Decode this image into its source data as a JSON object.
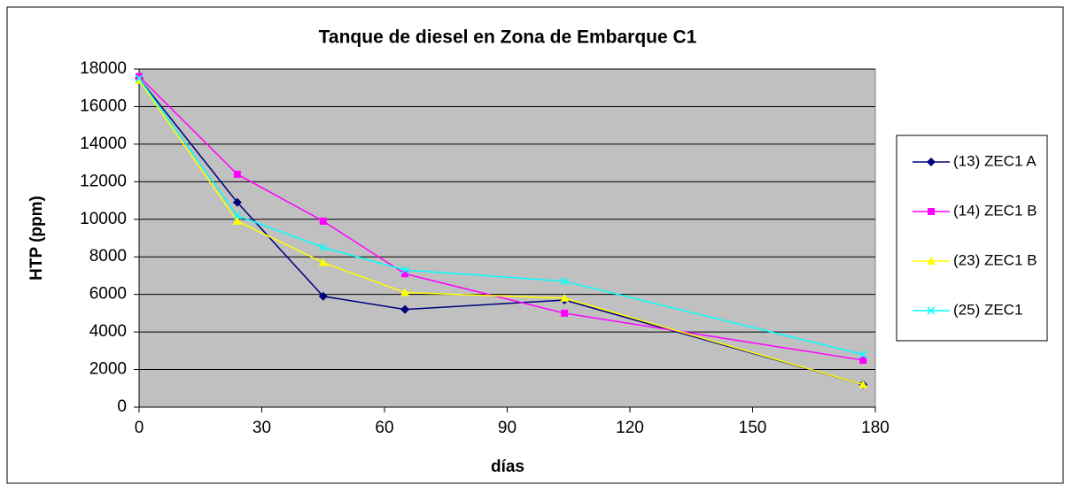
{
  "chart_data": {
    "type": "line",
    "title": "Tanque de diesel en Zona de Embarque C1",
    "x_label": "días",
    "y_label": "HTP (ppm)",
    "x": [
      0,
      24,
      45,
      65,
      104,
      177
    ],
    "series": [
      {
        "name": "(13) ZEC1 A",
        "color": "#000080",
        "marker": "diamond",
        "values": [
          17500,
          10900,
          5900,
          5200,
          5700,
          1200
        ]
      },
      {
        "name": "(14) ZEC1 B",
        "color": "#ff00ff",
        "marker": "square",
        "values": [
          17600,
          12400,
          9900,
          7100,
          5000,
          2500
        ]
      },
      {
        "name": "(23) ZEC1 B",
        "color": "#ffff00",
        "marker": "triangle",
        "values": [
          17400,
          9900,
          7700,
          6100,
          5800,
          1200
        ]
      },
      {
        "name": "(25) ZEC1",
        "color": "#00ffff",
        "marker": "x",
        "values": [
          17500,
          10200,
          8500,
          7300,
          6700,
          2800
        ]
      }
    ],
    "xlim": [
      0,
      180
    ],
    "xticks": [
      0,
      30,
      60,
      90,
      120,
      150,
      180
    ],
    "ylim": [
      0,
      18000
    ],
    "yticks": [
      0,
      2000,
      4000,
      6000,
      8000,
      10000,
      12000,
      14000,
      16000,
      18000
    ],
    "grid": true,
    "legend": "right"
  }
}
